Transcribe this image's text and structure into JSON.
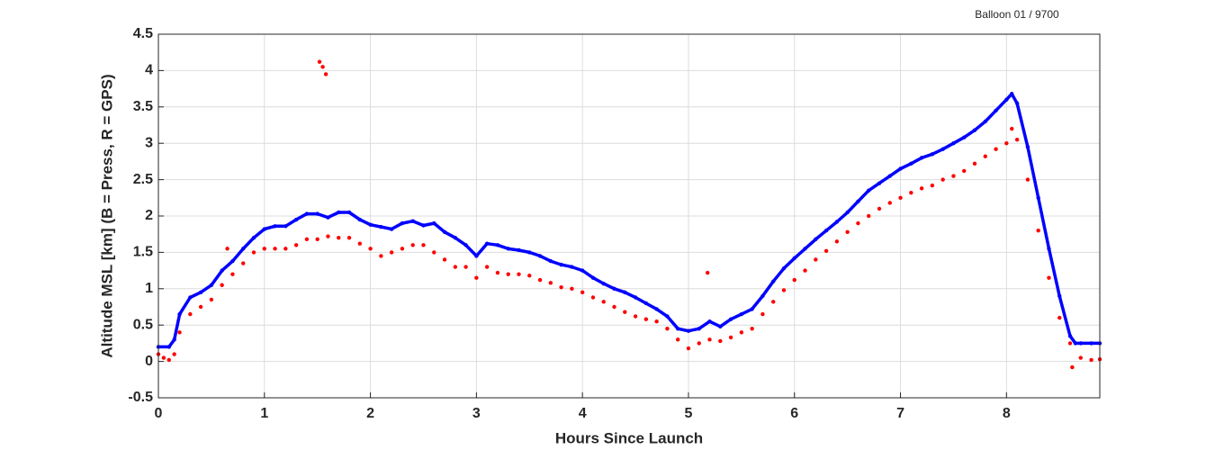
{
  "chart_data": {
    "type": "scatter",
    "title": "Balloon 01 / 9700",
    "x_label": "Hours Since Launch",
    "y_label": "Altitude MSL [km]   (B = Press, R = GPS)",
    "xlim": [
      0,
      8.88
    ],
    "ylim": [
      -0.5,
      4.5
    ],
    "xticks": [
      0,
      1,
      2,
      3,
      4,
      5,
      6,
      7,
      8
    ],
    "yticks": [
      -0.5,
      0,
      0.5,
      1,
      1.5,
      2,
      2.5,
      3,
      3.5,
      4,
      4.5
    ],
    "grid": true,
    "series": [
      {
        "color": "#0000ff",
        "line": true,
        "x": [
          0,
          0.1,
          0.15,
          0.2,
          0.3,
          0.4,
          0.5,
          0.6,
          0.7,
          0.8,
          0.9,
          1.0,
          1.1,
          1.2,
          1.3,
          1.4,
          1.5,
          1.6,
          1.7,
          1.8,
          1.9,
          2.0,
          2.1,
          2.2,
          2.3,
          2.4,
          2.5,
          2.6,
          2.7,
          2.8,
          2.9,
          3.0,
          3.1,
          3.2,
          3.3,
          3.4,
          3.5,
          3.6,
          3.7,
          3.8,
          3.9,
          4.0,
          4.1,
          4.2,
          4.3,
          4.4,
          4.5,
          4.6,
          4.7,
          4.8,
          4.9,
          5.0,
          5.1,
          5.2,
          5.3,
          5.4,
          5.5,
          5.6,
          5.7,
          5.8,
          5.9,
          6.0,
          6.1,
          6.2,
          6.3,
          6.4,
          6.5,
          6.6,
          6.7,
          6.8,
          6.9,
          7.0,
          7.1,
          7.2,
          7.3,
          7.4,
          7.5,
          7.6,
          7.7,
          7.8,
          7.9,
          8.0,
          8.05,
          8.1,
          8.2,
          8.3,
          8.4,
          8.5,
          8.6,
          8.65,
          8.7,
          8.8,
          8.88
        ],
        "values": [
          0.2,
          0.2,
          0.3,
          0.65,
          0.88,
          0.95,
          1.05,
          1.25,
          1.38,
          1.55,
          1.7,
          1.82,
          1.86,
          1.86,
          1.95,
          2.03,
          2.03,
          1.98,
          2.05,
          2.05,
          1.95,
          1.88,
          1.85,
          1.82,
          1.9,
          1.93,
          1.87,
          1.9,
          1.78,
          1.7,
          1.6,
          1.45,
          1.62,
          1.6,
          1.55,
          1.53,
          1.5,
          1.45,
          1.38,
          1.33,
          1.3,
          1.25,
          1.15,
          1.07,
          1.0,
          0.95,
          0.88,
          0.8,
          0.72,
          0.62,
          0.45,
          0.42,
          0.45,
          0.55,
          0.48,
          0.58,
          0.65,
          0.72,
          0.9,
          1.1,
          1.28,
          1.42,
          1.55,
          1.68,
          1.8,
          1.92,
          2.05,
          2.2,
          2.35,
          2.45,
          2.55,
          2.65,
          2.72,
          2.8,
          2.85,
          2.92,
          3.0,
          3.08,
          3.18,
          3.3,
          3.45,
          3.6,
          3.68,
          3.55,
          2.95,
          2.25,
          1.55,
          0.9,
          0.35,
          0.25,
          0.25,
          0.25,
          0.25
        ]
      },
      {
        "color": "#ff0000",
        "line": false,
        "x": [
          0,
          0.05,
          0.1,
          0.15,
          0.2,
          0.3,
          0.4,
          0.5,
          0.6,
          0.65,
          0.7,
          0.8,
          0.9,
          1.0,
          1.1,
          1.2,
          1.3,
          1.4,
          1.5,
          1.52,
          1.55,
          1.58,
          1.6,
          1.7,
          1.8,
          1.9,
          2.0,
          2.1,
          2.2,
          2.3,
          2.4,
          2.5,
          2.6,
          2.7,
          2.8,
          2.9,
          3.0,
          3.1,
          3.2,
          3.3,
          3.4,
          3.5,
          3.6,
          3.7,
          3.8,
          3.9,
          4.0,
          4.1,
          4.2,
          4.3,
          4.4,
          4.5,
          4.6,
          4.7,
          4.8,
          4.9,
          5.0,
          5.1,
          5.18,
          5.2,
          5.3,
          5.4,
          5.5,
          5.6,
          5.7,
          5.8,
          5.9,
          6.0,
          6.1,
          6.2,
          6.3,
          6.4,
          6.5,
          6.6,
          6.7,
          6.8,
          6.9,
          7.0,
          7.1,
          7.2,
          7.3,
          7.4,
          7.5,
          7.6,
          7.7,
          7.8,
          7.9,
          8.0,
          8.05,
          8.1,
          8.2,
          8.3,
          8.4,
          8.5,
          8.6,
          8.62,
          8.7,
          8.8,
          8.88
        ],
        "values": [
          0.1,
          0.05,
          0.02,
          0.1,
          0.4,
          0.65,
          0.75,
          0.85,
          1.05,
          1.55,
          1.2,
          1.35,
          1.5,
          1.55,
          1.55,
          1.55,
          1.6,
          1.68,
          1.68,
          4.12,
          4.05,
          3.95,
          1.72,
          1.7,
          1.7,
          1.62,
          1.55,
          1.45,
          1.5,
          1.55,
          1.6,
          1.6,
          1.5,
          1.4,
          1.3,
          1.3,
          1.15,
          1.3,
          1.22,
          1.2,
          1.2,
          1.18,
          1.12,
          1.08,
          1.02,
          1.0,
          0.95,
          0.88,
          0.82,
          0.75,
          0.68,
          0.62,
          0.58,
          0.55,
          0.45,
          0.3,
          0.18,
          0.25,
          1.22,
          0.3,
          0.28,
          0.33,
          0.4,
          0.45,
          0.65,
          0.82,
          0.98,
          1.12,
          1.25,
          1.4,
          1.52,
          1.65,
          1.78,
          1.9,
          2.0,
          2.1,
          2.18,
          2.25,
          2.32,
          2.38,
          2.42,
          2.5,
          2.55,
          2.62,
          2.72,
          2.82,
          2.92,
          3.0,
          3.2,
          3.05,
          2.5,
          1.8,
          1.15,
          0.6,
          0.25,
          -0.08,
          0.05,
          0.02,
          0.03
        ]
      }
    ]
  }
}
